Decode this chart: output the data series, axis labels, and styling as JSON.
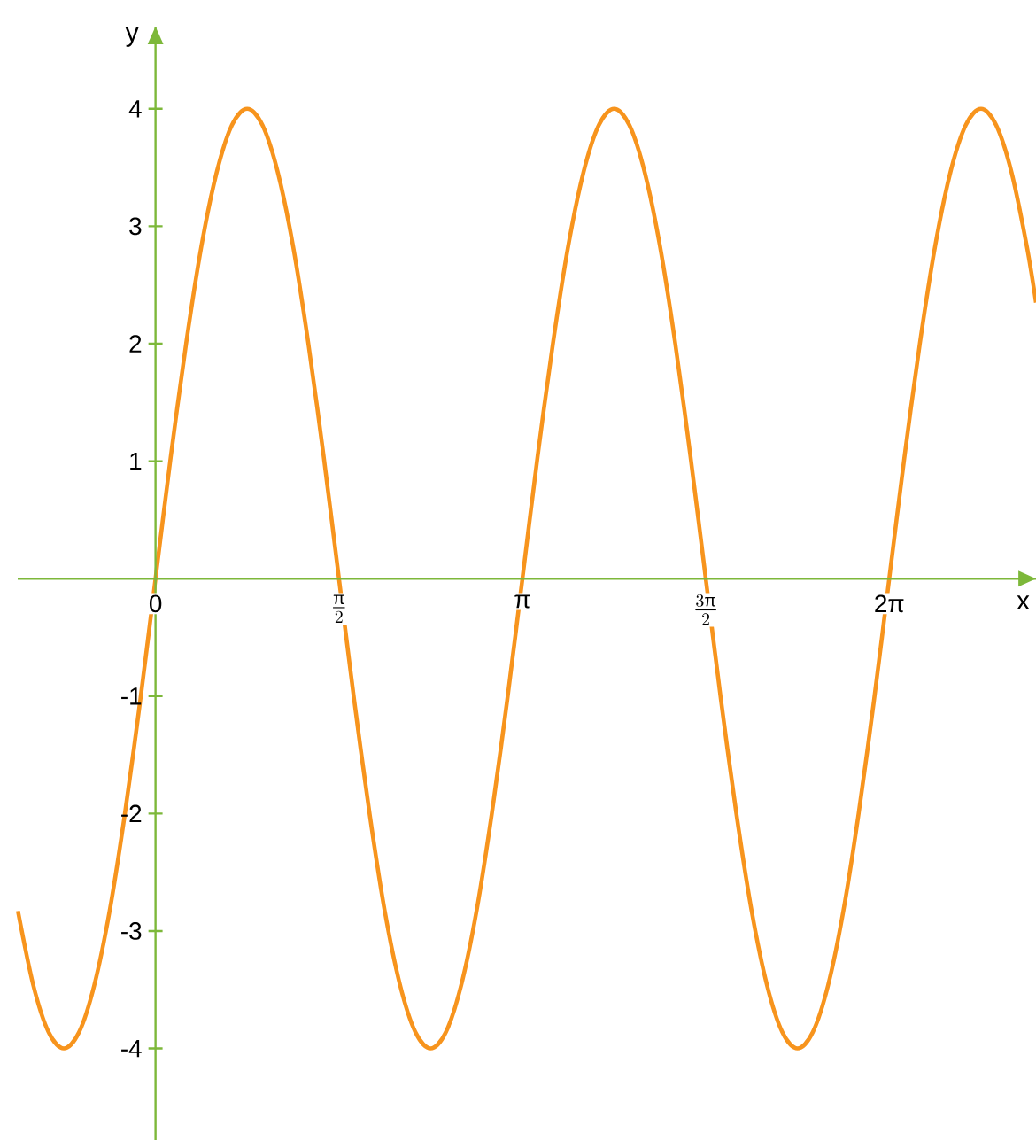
{
  "chart_data": {
    "type": "line",
    "xlabel": "x",
    "ylabel": "y",
    "x": [
      -1.178,
      -1.047,
      -0.916,
      -0.785,
      -0.654,
      -0.524,
      -0.393,
      -0.262,
      -0.131,
      0,
      0.131,
      0.262,
      0.393,
      0.524,
      0.654,
      0.785,
      0.916,
      1.047,
      1.178,
      1.309,
      1.44,
      1.571,
      1.702,
      1.833,
      1.963,
      2.094,
      2.225,
      2.356,
      2.487,
      2.618,
      2.749,
      2.88,
      3.011,
      3.142,
      3.272,
      3.403,
      3.534,
      3.665,
      3.796,
      3.927,
      4.058,
      4.189,
      4.32,
      4.451,
      4.581,
      4.712,
      4.843,
      4.974,
      5.105,
      5.236,
      5.367,
      5.498,
      5.629,
      5.76,
      5.89,
      6.021,
      6.152,
      6.283,
      6.414,
      6.545,
      6.676,
      6.807,
      6.938,
      7.069,
      7.199,
      7.33,
      7.461,
      7.54
    ],
    "series": [
      {
        "color": "#f7941d",
        "values": [
          -2.83,
          -3.46,
          -3.86,
          -4,
          -3.86,
          -3.46,
          -2.83,
          -2,
          -1.04,
          0,
          1.04,
          2,
          2.83,
          3.46,
          3.86,
          4,
          3.86,
          3.46,
          2.83,
          2,
          1.04,
          0,
          -1.04,
          -2,
          -2.83,
          -3.46,
          -3.86,
          -4,
          -3.86,
          -3.46,
          -2.83,
          -2,
          -1.04,
          0,
          1.04,
          2,
          2.83,
          3.46,
          3.86,
          4,
          3.86,
          3.46,
          2.83,
          2,
          1.04,
          0,
          -1.04,
          -2,
          -2.83,
          -3.46,
          -3.86,
          -4,
          -3.86,
          -3.46,
          -2.83,
          -2,
          -1.04,
          0,
          1.04,
          2,
          2.83,
          3.46,
          3.86,
          4,
          3.86,
          3.46,
          2.83,
          2.35
        ]
      }
    ],
    "xlim": [
      -1.18,
      7.54
    ],
    "ylim": [
      -4.78,
      4.7
    ],
    "xticks": [
      {
        "value": 0,
        "label": "0"
      },
      {
        "value": 1.5708,
        "label": "\\frac{\\text{π}}{2}"
      },
      {
        "value": 3.1416,
        "label": "π"
      },
      {
        "value": 4.7124,
        "label": "\\frac{3\\text{π}}{2}"
      },
      {
        "value": 6.2832,
        "label": "2π"
      }
    ],
    "yticks": [
      -4,
      -3,
      -2,
      -1,
      1,
      2,
      3,
      4
    ],
    "grid": false,
    "marker": "none",
    "line_style": "solid"
  }
}
